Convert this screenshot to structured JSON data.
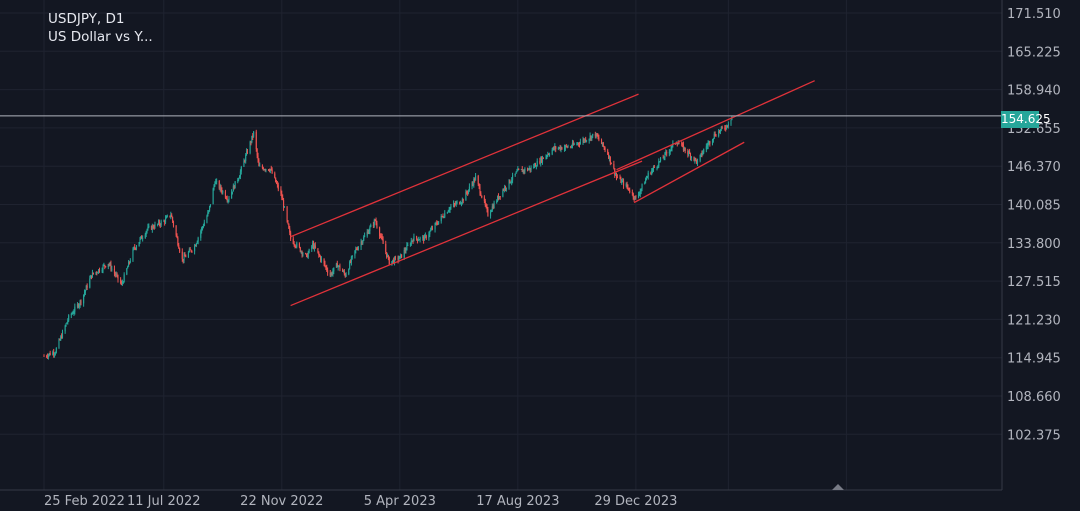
{
  "header": {
    "symbol_line": "USDJPY, D1",
    "name_line": "US Dollar vs Y..."
  },
  "colors": {
    "background": "#131722",
    "up": "#26a69a",
    "down": "#ef5350",
    "channel": "#e0323a",
    "grid": "#1f2330",
    "price_line": "#b2b5be"
  },
  "chart_data": {
    "type": "candlestick",
    "symbol": "USDJPY",
    "timeframe": "D1",
    "ylim": [
      98.0,
      174.0
    ],
    "y_ticks": [
      "171.510",
      "165.225",
      "158.940",
      "152.655",
      "146.370",
      "140.085",
      "133.800",
      "127.515",
      "121.230",
      "114.945",
      "108.660",
      "102.375"
    ],
    "x_ticks": [
      "25 Feb 2022",
      "11 Jul 2022",
      "22 Nov 2022",
      "5 Apr 2023",
      "17 Aug 2023",
      "29 Dec 2023"
    ],
    "x_range": [
      "2022-02-14",
      "2024-12-31"
    ],
    "current_price": "154.625",
    "price_path": [
      [
        "2022-02-25",
        115.2
      ],
      [
        "2022-03-10",
        116.0
      ],
      [
        "2022-03-25",
        121.5
      ],
      [
        "2022-04-08",
        124.3
      ],
      [
        "2022-04-20",
        128.5
      ],
      [
        "2022-05-09",
        130.5
      ],
      [
        "2022-05-24",
        126.9
      ],
      [
        "2022-06-07",
        132.8
      ],
      [
        "2022-06-22",
        136.0
      ],
      [
        "2022-07-11",
        137.3
      ],
      [
        "2022-07-19",
        138.5
      ],
      [
        "2022-08-01",
        131.0
      ],
      [
        "2022-08-15",
        133.3
      ],
      [
        "2022-08-31",
        138.9
      ],
      [
        "2022-09-07",
        143.9
      ],
      [
        "2022-09-22",
        141.0
      ],
      [
        "2022-10-05",
        145.0
      ],
      [
        "2022-10-21",
        151.8
      ],
      [
        "2022-10-27",
        146.2
      ],
      [
        "2022-11-09",
        145.9
      ],
      [
        "2022-11-22",
        141.3
      ],
      [
        "2022-12-02",
        134.5
      ],
      [
        "2022-12-20",
        131.5
      ],
      [
        "2022-12-27",
        133.5
      ],
      [
        "2023-01-16",
        128.5
      ],
      [
        "2023-01-24",
        130.2
      ],
      [
        "2023-02-02",
        128.5
      ],
      [
        "2023-02-13",
        132.4
      ],
      [
        "2023-03-08",
        137.5
      ],
      [
        "2023-03-24",
        130.6
      ],
      [
        "2023-04-05",
        131.3
      ],
      [
        "2023-04-20",
        134.5
      ],
      [
        "2023-05-03",
        134.5
      ],
      [
        "2023-05-31",
        139.5
      ],
      [
        "2023-06-15",
        140.8
      ],
      [
        "2023-06-30",
        144.5
      ],
      [
        "2023-07-14",
        138.5
      ],
      [
        "2023-07-31",
        142.5
      ],
      [
        "2023-08-17",
        145.5
      ],
      [
        "2023-09-01",
        146.0
      ],
      [
        "2023-09-27",
        149.3
      ],
      [
        "2023-10-16",
        149.6
      ],
      [
        "2023-11-13",
        151.6
      ],
      [
        "2023-11-27",
        148.5
      ],
      [
        "2023-12-07",
        144.6
      ],
      [
        "2023-12-20",
        142.8
      ],
      [
        "2023-12-29",
        141.0
      ],
      [
        "2024-01-12",
        145.0
      ],
      [
        "2024-01-29",
        147.8
      ],
      [
        "2024-02-13",
        150.5
      ],
      [
        "2024-03-08",
        147.0
      ],
      [
        "2024-03-15",
        149.0
      ],
      [
        "2024-03-27",
        151.5
      ],
      [
        "2024-04-10",
        153.0
      ],
      [
        "2024-04-16",
        154.6
      ]
    ],
    "trend_lines": [
      {
        "from": [
          "2022-12-02",
          134.8
        ],
        "to": [
          "2024-01-01",
          158.2
        ]
      },
      {
        "from": [
          "2022-12-02",
          123.5
        ],
        "to": [
          "2024-01-05",
          147.2
        ]
      },
      {
        "from": [
          "2023-12-07",
          145.8
        ],
        "to": [
          "2024-07-19",
          160.4
        ]
      },
      {
        "from": [
          "2023-12-27",
          140.4
        ],
        "to": [
          "2024-04-30",
          150.3
        ]
      }
    ]
  }
}
